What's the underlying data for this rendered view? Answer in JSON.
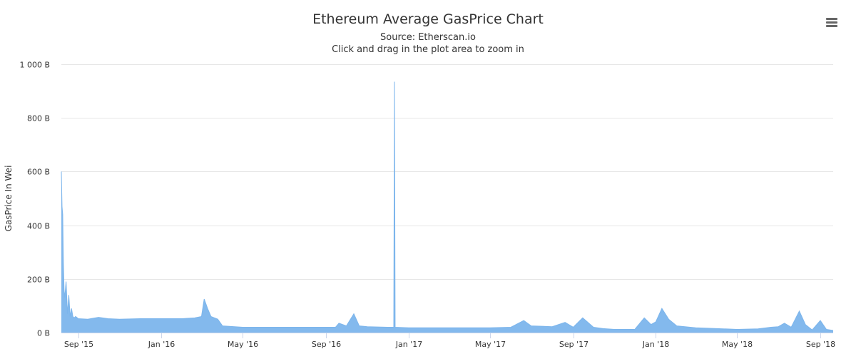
{
  "chart_data": {
    "type": "area",
    "title": "Ethereum Average GasPrice Chart",
    "subtitle": "Source: Etherscan.io",
    "subtitle2": "Click and drag in the plot area to zoom in",
    "ylabel": "GasPrice In Wei",
    "xlabel": "",
    "ylim": [
      0,
      1000
    ],
    "y_ticks": [
      0,
      200,
      400,
      600,
      800,
      1000
    ],
    "y_tick_labels": [
      "0 B",
      "200 B",
      "400 B",
      "600 B",
      "800 B",
      "1 000 B"
    ],
    "x_range": [
      "2015-08-07",
      "2018-09-20"
    ],
    "x_ticks": [
      "2015-09-01",
      "2016-01-01",
      "2016-05-01",
      "2016-09-01",
      "2017-01-01",
      "2017-05-01",
      "2017-09-01",
      "2018-01-01",
      "2018-05-01",
      "2018-09-01"
    ],
    "x_tick_labels": [
      "Sep '15",
      "Jan '16",
      "May '16",
      "Sep '16",
      "Jan '17",
      "May '17",
      "Sep '17",
      "Jan '18",
      "May '18",
      "Sep '18"
    ],
    "grid": true,
    "legend": "none",
    "series_color": "#7cb5ec",
    "series": [
      {
        "x": [
          "2015-08-07",
          "2015-08-08",
          "2015-08-09",
          "2015-08-10",
          "2015-08-11",
          "2015-08-12",
          "2015-08-14",
          "2015-08-16",
          "2015-08-18",
          "2015-08-20",
          "2015-08-22",
          "2015-08-24",
          "2015-08-26",
          "2015-08-28",
          "2015-09-01",
          "2015-09-15",
          "2015-10-01",
          "2015-10-15",
          "2015-11-01",
          "2015-12-01",
          "2016-01-01",
          "2016-02-01",
          "2016-02-20",
          "2016-03-01",
          "2016-03-05",
          "2016-03-10",
          "2016-03-15",
          "2016-03-20",
          "2016-03-25",
          "2016-04-01",
          "2016-05-01",
          "2016-07-01",
          "2016-09-01",
          "2016-09-15",
          "2016-09-20",
          "2016-10-01",
          "2016-10-12",
          "2016-10-20",
          "2016-11-01",
          "2016-12-01",
          "2016-12-10",
          "2016-12-11",
          "2016-12-12",
          "2017-01-01",
          "2017-03-01",
          "2017-05-01",
          "2017-06-01",
          "2017-06-20",
          "2017-07-01",
          "2017-08-01",
          "2017-08-20",
          "2017-09-01",
          "2017-09-15",
          "2017-10-01",
          "2017-10-15",
          "2017-11-01",
          "2017-12-01",
          "2017-12-15",
          "2017-12-25",
          "2018-01-01",
          "2018-01-10",
          "2018-01-20",
          "2018-02-01",
          "2018-03-01",
          "2018-04-01",
          "2018-05-01",
          "2018-06-01",
          "2018-06-20",
          "2018-07-01",
          "2018-07-10",
          "2018-07-20",
          "2018-08-01",
          "2018-08-10",
          "2018-08-20",
          "2018-09-01",
          "2018-09-10",
          "2018-09-20"
        ],
        "y": [
          600,
          470,
          440,
          260,
          160,
          130,
          190,
          70,
          140,
          60,
          90,
          60,
          55,
          60,
          52,
          50,
          57,
          52,
          50,
          52,
          52,
          52,
          55,
          60,
          125,
          90,
          60,
          55,
          50,
          25,
          20,
          20,
          20,
          20,
          35,
          25,
          70,
          25,
          22,
          20,
          20,
          935,
          20,
          18,
          18,
          18,
          20,
          45,
          25,
          22,
          38,
          20,
          55,
          20,
          15,
          12,
          12,
          55,
          30,
          40,
          90,
          50,
          25,
          18,
          15,
          12,
          14,
          20,
          22,
          35,
          20,
          80,
          30,
          10,
          45,
          12,
          8
        ]
      }
    ]
  }
}
